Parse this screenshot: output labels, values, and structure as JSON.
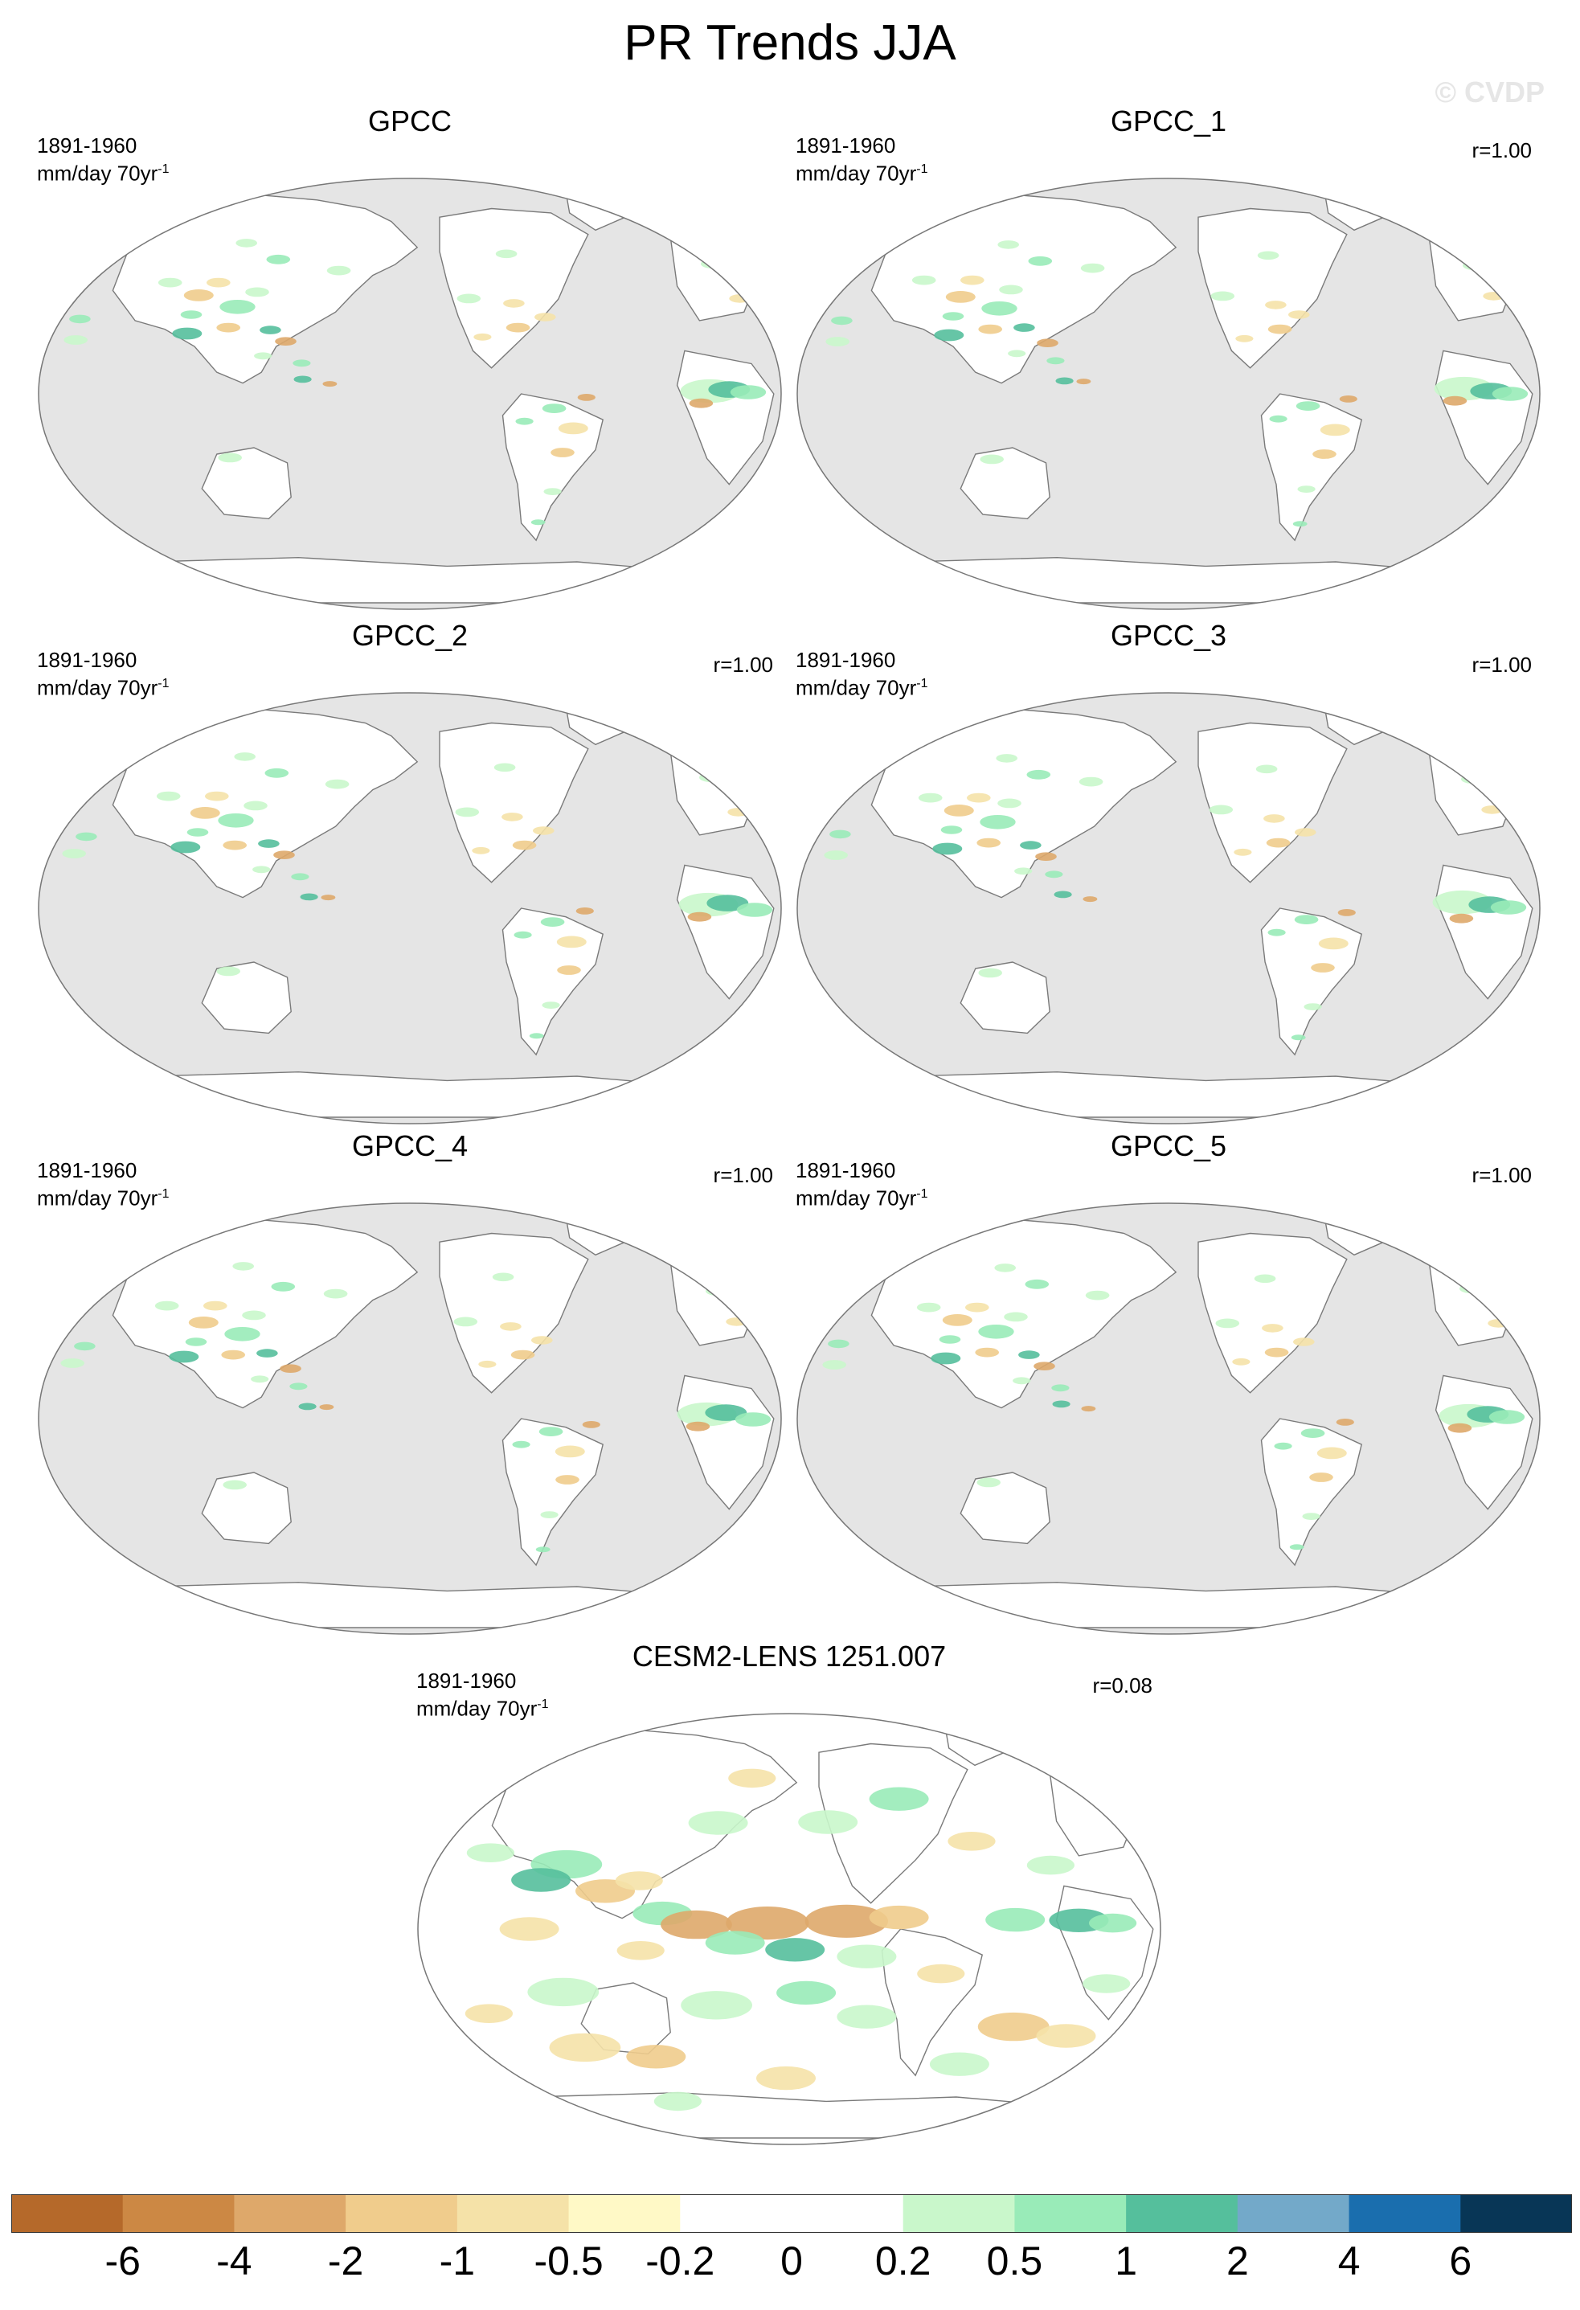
{
  "figure": {
    "title": "PR Trends JJA",
    "watermark": "© CVDP"
  },
  "colors": {
    "ocean": "#e5e5e5",
    "land": "#ffffff",
    "coast": "#7a7a7a",
    "model_ocean": "#ffffff"
  },
  "panels": [
    {
      "title": "GPCC",
      "period": "1891-1960",
      "units": "mm/day 70yr",
      "units_exp": "-1",
      "correlation": "",
      "style": "obs"
    },
    {
      "title": "GPCC_1",
      "period": "1891-1960",
      "units": "mm/day 70yr",
      "units_exp": "-1",
      "correlation": "r=1.00",
      "style": "obs"
    },
    {
      "title": "GPCC_2",
      "period": "1891-1960",
      "units": "mm/day 70yr",
      "units_exp": "-1",
      "correlation": "r=1.00",
      "style": "obs"
    },
    {
      "title": "GPCC_3",
      "period": "1891-1960",
      "units": "mm/day 70yr",
      "units_exp": "-1",
      "correlation": "r=1.00",
      "style": "obs"
    },
    {
      "title": "GPCC_4",
      "period": "1891-1960",
      "units": "mm/day 70yr",
      "units_exp": "-1",
      "correlation": "r=1.00",
      "style": "obs"
    },
    {
      "title": "GPCC_5",
      "period": "1891-1960",
      "units": "mm/day 70yr",
      "units_exp": "-1",
      "correlation": "r=1.00",
      "style": "obs"
    },
    {
      "title": "CESM2-LENS 1251.007",
      "period": "1891-1960",
      "units": "mm/day 70yr",
      "units_exp": "-1",
      "correlation": "r=0.08",
      "style": "model"
    }
  ],
  "colorbar": {
    "colors": [
      "#b5692a",
      "#cc8844",
      "#dea86a",
      "#f0cc8c",
      "#f5e2a8",
      "#fff9c6",
      "#ffffff",
      "#ffffff",
      "#c9f7cb",
      "#99ebb8",
      "#55bf9c",
      "#73a9c9",
      "#1a6eae",
      "#083656"
    ],
    "labels": [
      "-6",
      "-4",
      "-2",
      "-1",
      "-0.5",
      "-0.2",
      "0",
      "0.2",
      "0.5",
      "1",
      "2",
      "4",
      "6"
    ]
  }
}
